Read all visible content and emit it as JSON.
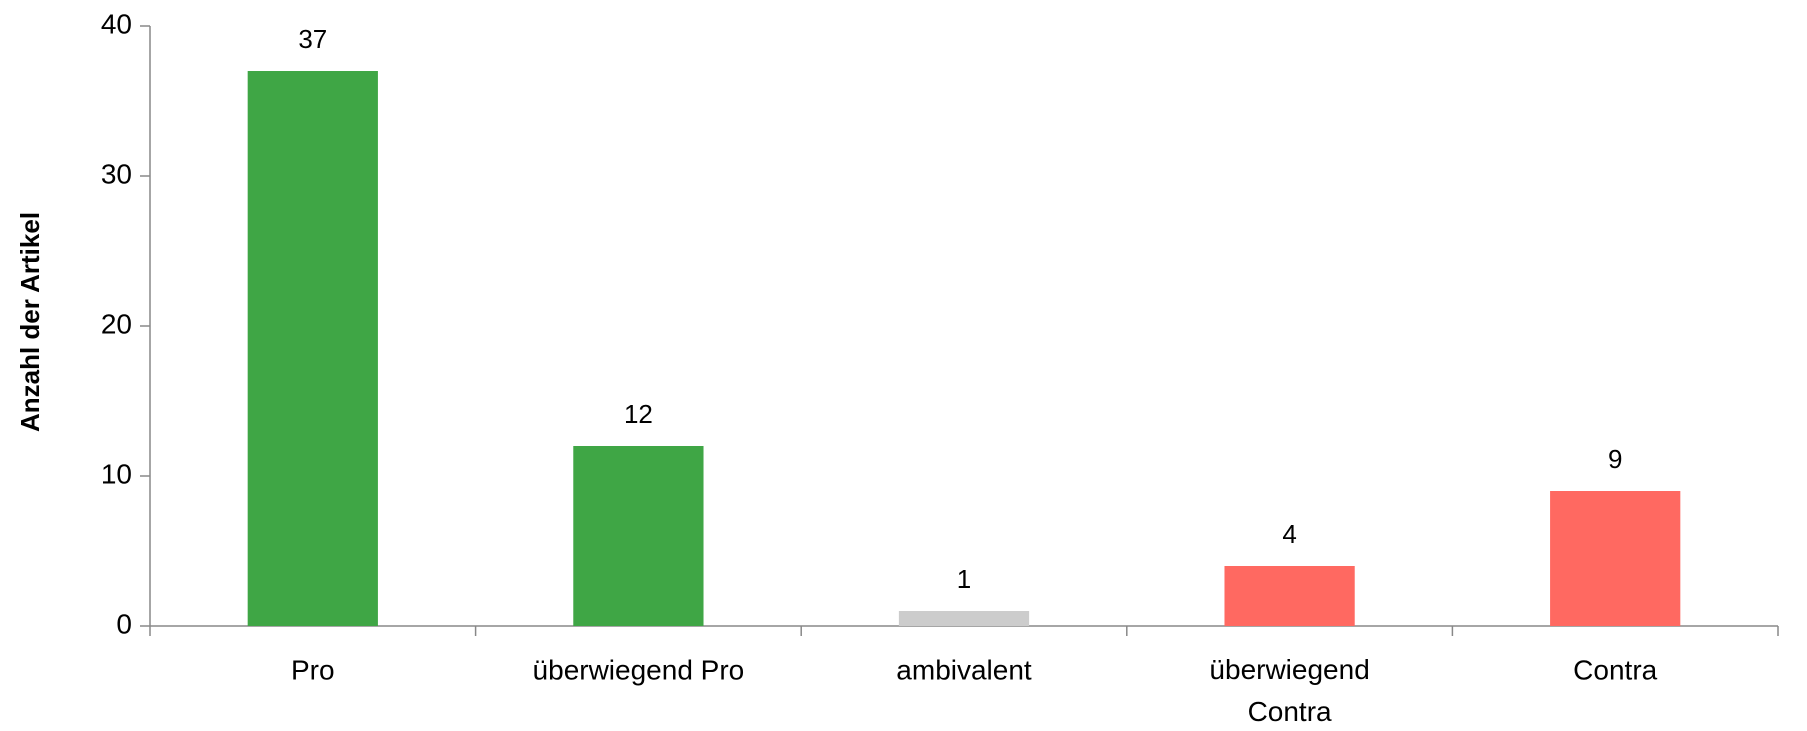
{
  "chart_data": {
    "type": "bar",
    "y_label": "Anzahl der Artikel",
    "categories": [
      "Pro",
      "überwiegend Pro",
      "ambivalent",
      "überwiegend Contra",
      "Contra"
    ],
    "values": [
      37,
      12,
      1,
      4,
      9
    ],
    "colors": [
      "#3fa645",
      "#3fa645",
      "#cccccc",
      "#ff6961",
      "#ff6961"
    ],
    "ylim": [
      0,
      40
    ],
    "yticks": [
      0,
      10,
      20,
      30,
      40
    ],
    "grid": false
  }
}
